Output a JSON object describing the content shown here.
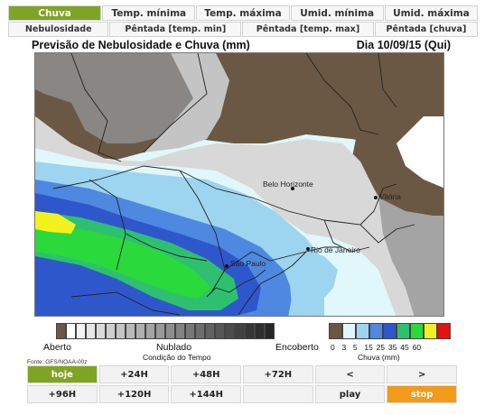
{
  "tabs_row1": [
    "Chuva",
    "Temp. mínima",
    "Temp. máxima",
    "Umid. mínima",
    "Umid. máxima"
  ],
  "tabs_row2": [
    "Nebulosidade",
    "Pêntada [temp. min]",
    "Pêntada [temp. max]",
    "Pêntada [chuva]"
  ],
  "map": {
    "title": "Previsão de Nebulosidade e Chuva (mm)",
    "date": "Dia 10/09/15 (Qui)",
    "cities": [
      "Belo Horizonte",
      "Vitória",
      "Rio de Janeiro",
      "São Paulo"
    ]
  },
  "legend": {
    "cloud_left": "Aberto",
    "cloud_mid": "Nublado",
    "cloud_right": "Encoberto",
    "cloud_caption": "Condição do Tempo",
    "rain_values": "0  3  5  15 25 35 45 60",
    "rain_caption": "Chuva (mm)",
    "cloud_colors": [
      "#6b5844",
      "#ffffff",
      "#f4f4f4",
      "#e6e6e6",
      "#dadada",
      "#cfcfcf",
      "#c4c4c4",
      "#b9b9b9",
      "#afafaf",
      "#a4a4a4",
      "#999999",
      "#8e8e8e",
      "#838383",
      "#787878",
      "#6d6d6d",
      "#626262",
      "#575757",
      "#4c4c4c",
      "#414141",
      "#363636",
      "#2e2e2e",
      "#262626"
    ],
    "rain_colors": [
      "#6b5844",
      "#e0f7fb",
      "#9dd4f0",
      "#4e88e0",
      "#2f57cc",
      "#2ec06e",
      "#2ad93b",
      "#f3f11e",
      "#e21313"
    ]
  },
  "source": "Fonte: GFS/NOAA-00z",
  "controls_row1": [
    "hoje",
    "+24H",
    "+48H",
    "+72H",
    "<",
    ">"
  ],
  "controls_row2": [
    "+96H",
    "+120H",
    "+144H",
    "",
    "play",
    "stop"
  ],
  "colors": {
    "accent_green": "#7fa424",
    "accent_orange": "#f29a1a"
  }
}
